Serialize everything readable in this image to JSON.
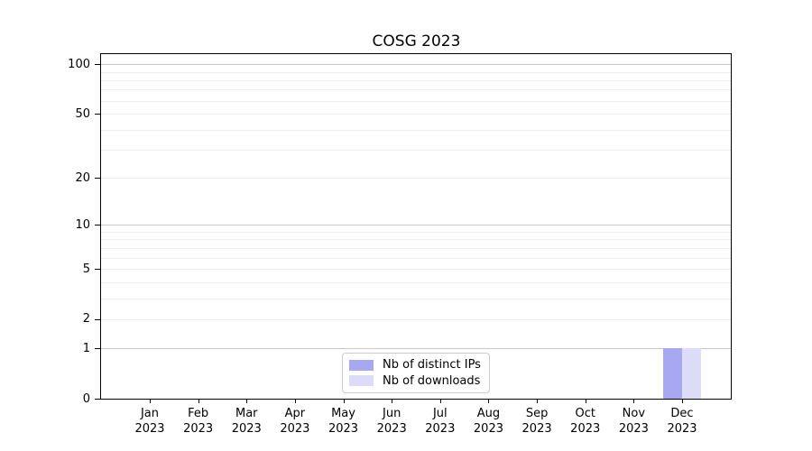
{
  "chart_data": {
    "type": "bar",
    "title": "COSG 2023",
    "categories": [
      "Jan",
      "Feb",
      "Mar",
      "Apr",
      "May",
      "Jun",
      "Jul",
      "Aug",
      "Sep",
      "Oct",
      "Nov",
      "Dec"
    ],
    "category_year": "2023",
    "series": [
      {
        "name": "Nb of distinct IPs",
        "color": "#a8a8f2",
        "values": [
          0,
          0,
          0,
          0,
          0,
          0,
          0,
          0,
          0,
          0,
          0,
          1
        ]
      },
      {
        "name": "Nb of downloads",
        "color": "#dcdcf8",
        "values": [
          0,
          0,
          0,
          0,
          0,
          0,
          0,
          0,
          0,
          0,
          0,
          1
        ]
      }
    ],
    "y_axis": {
      "scale": "log1p",
      "ticks": [
        0,
        1,
        2,
        5,
        10,
        20,
        50,
        100
      ],
      "major_grid": [
        1,
        10,
        100
      ],
      "minor_grid": [
        2,
        3,
        4,
        5,
        6,
        7,
        8,
        9,
        20,
        30,
        40,
        50,
        60,
        70,
        80,
        90
      ],
      "min": 0,
      "max": 115
    },
    "xlabel": "",
    "ylabel": "",
    "grid": true,
    "legend_position": "lower center"
  },
  "colors": {
    "background": "#ffffff",
    "spine": "#000000",
    "grid_major": "#c9c9c9",
    "grid_minor": "#ededed",
    "legend_border": "#cccccc",
    "text": "#000000"
  }
}
